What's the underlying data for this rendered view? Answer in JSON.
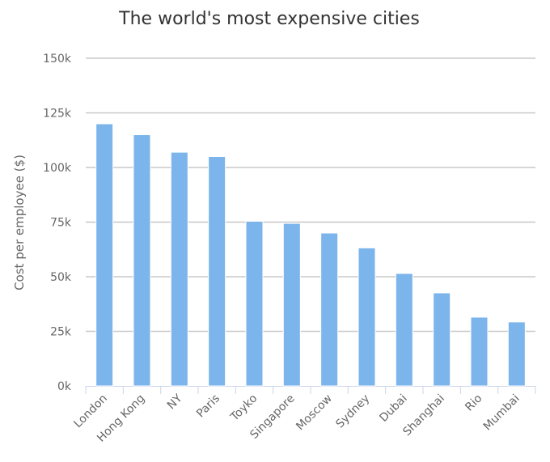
{
  "chart_data": {
    "type": "bar",
    "title": "The world's most expensive cities",
    "xlabel": "",
    "ylabel": "Cost per employee ($)",
    "ylim": [
      0,
      150000
    ],
    "yticks": [
      0,
      25000,
      50000,
      75000,
      100000,
      125000,
      150000
    ],
    "ytick_labels": [
      "0k",
      "25k",
      "50k",
      "75k",
      "100k",
      "125k",
      "150k"
    ],
    "grid": true,
    "legend": "none",
    "categories": [
      "London",
      "Hong Kong",
      "NY",
      "Paris",
      "Toyko",
      "Singapore",
      "Moscow",
      "Sydney",
      "Dubai",
      "Shanghai",
      "Rio",
      "Mumbai"
    ],
    "values": [
      120000,
      115000,
      107000,
      105000,
      75400,
      74400,
      70000,
      63200,
      51500,
      42600,
      31500,
      29300
    ],
    "color": "#7cb5ec"
  }
}
